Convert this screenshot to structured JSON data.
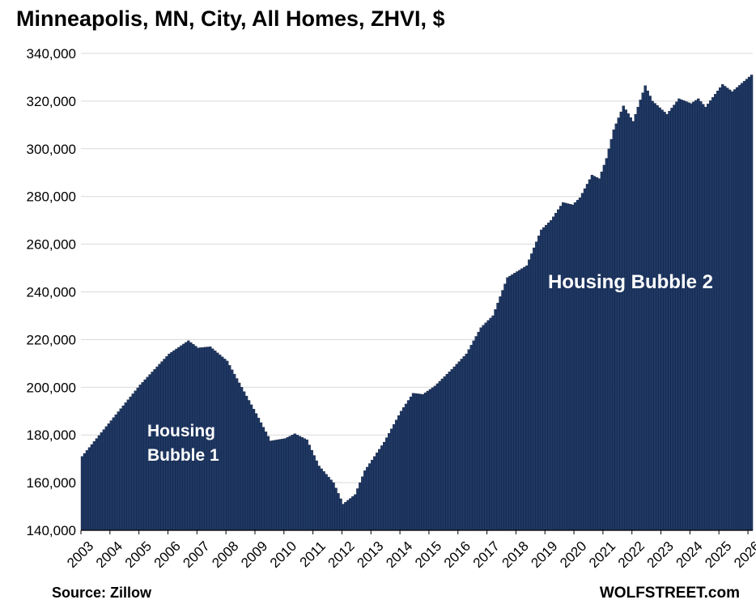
{
  "chart_data": {
    "type": "bar",
    "title": "Minneapolis, MN, City, All Homes, ZHVI, $",
    "xlabel": "",
    "ylabel": "",
    "ylim": [
      140000,
      340000
    ],
    "yticks": [
      "140,000",
      "160,000",
      "180,000",
      "200,000",
      "220,000",
      "240,000",
      "260,000",
      "280,000",
      "300,000",
      "320,000",
      "340,000"
    ],
    "yticks_values": [
      140000,
      160000,
      180000,
      200000,
      220000,
      240000,
      260000,
      280000,
      300000,
      320000,
      340000
    ],
    "xticks": [
      "2003",
      "2004",
      "2005",
      "2006",
      "2007",
      "2008",
      "2009",
      "2010",
      "2011",
      "2012",
      "2013",
      "2014",
      "2015",
      "2016",
      "2017",
      "2018",
      "2019",
      "2020",
      "2021",
      "2022",
      "2023",
      "2024",
      "2025",
      "2026"
    ],
    "x_start": "2003-01",
    "x_end": "2026-02",
    "grid": true,
    "bar_color": "#1f3864",
    "keypoints": [
      [
        "2003-01",
        171000
      ],
      [
        "2004-01",
        186000
      ],
      [
        "2005-01",
        201000
      ],
      [
        "2006-01",
        214000
      ],
      [
        "2006-09",
        219500
      ],
      [
        "2007-01",
        216500
      ],
      [
        "2007-06",
        217000
      ],
      [
        "2008-01",
        211000
      ],
      [
        "2008-07",
        200000
      ],
      [
        "2009-01",
        189000
      ],
      [
        "2009-07",
        177500
      ],
      [
        "2010-01",
        178500
      ],
      [
        "2010-05",
        180500
      ],
      [
        "2010-10",
        178000
      ],
      [
        "2011-03",
        167000
      ],
      [
        "2011-09",
        160000
      ],
      [
        "2012-01",
        151000
      ],
      [
        "2012-06",
        155000
      ],
      [
        "2012-10",
        165000
      ],
      [
        "2013-06",
        177000
      ],
      [
        "2014-01",
        190000
      ],
      [
        "2014-06",
        197500
      ],
      [
        "2014-10",
        197000
      ],
      [
        "2015-03",
        200500
      ],
      [
        "2015-10",
        207500
      ],
      [
        "2016-04",
        214000
      ],
      [
        "2016-10",
        225000
      ],
      [
        "2017-03",
        230000
      ],
      [
        "2017-09",
        246000
      ],
      [
        "2018-05",
        251000
      ],
      [
        "2018-11",
        266000
      ],
      [
        "2019-03",
        270000
      ],
      [
        "2019-08",
        277500
      ],
      [
        "2019-12",
        276500
      ],
      [
        "2020-03",
        279500
      ],
      [
        "2020-08",
        289000
      ],
      [
        "2020-11",
        287500
      ],
      [
        "2021-02",
        296000
      ],
      [
        "2021-05",
        308000
      ],
      [
        "2021-09",
        318000
      ],
      [
        "2022-01",
        311500
      ],
      [
        "2022-06",
        326500
      ],
      [
        "2022-09",
        320000
      ],
      [
        "2023-03",
        314500
      ],
      [
        "2023-08",
        321000
      ],
      [
        "2024-01",
        319000
      ],
      [
        "2024-04",
        321000
      ],
      [
        "2024-07",
        317500
      ],
      [
        "2025-02",
        327000
      ],
      [
        "2025-06",
        324000
      ],
      [
        "2025-10",
        327500
      ],
      [
        "2026-02",
        331000
      ]
    ]
  },
  "annotations": {
    "bubble1_line1": "Housing",
    "bubble1_line2": "Bubble 1",
    "bubble2": "Housing Bubble 2"
  },
  "footer": {
    "source": "Source: Zillow",
    "credit": "WOLFSTREET.com"
  }
}
